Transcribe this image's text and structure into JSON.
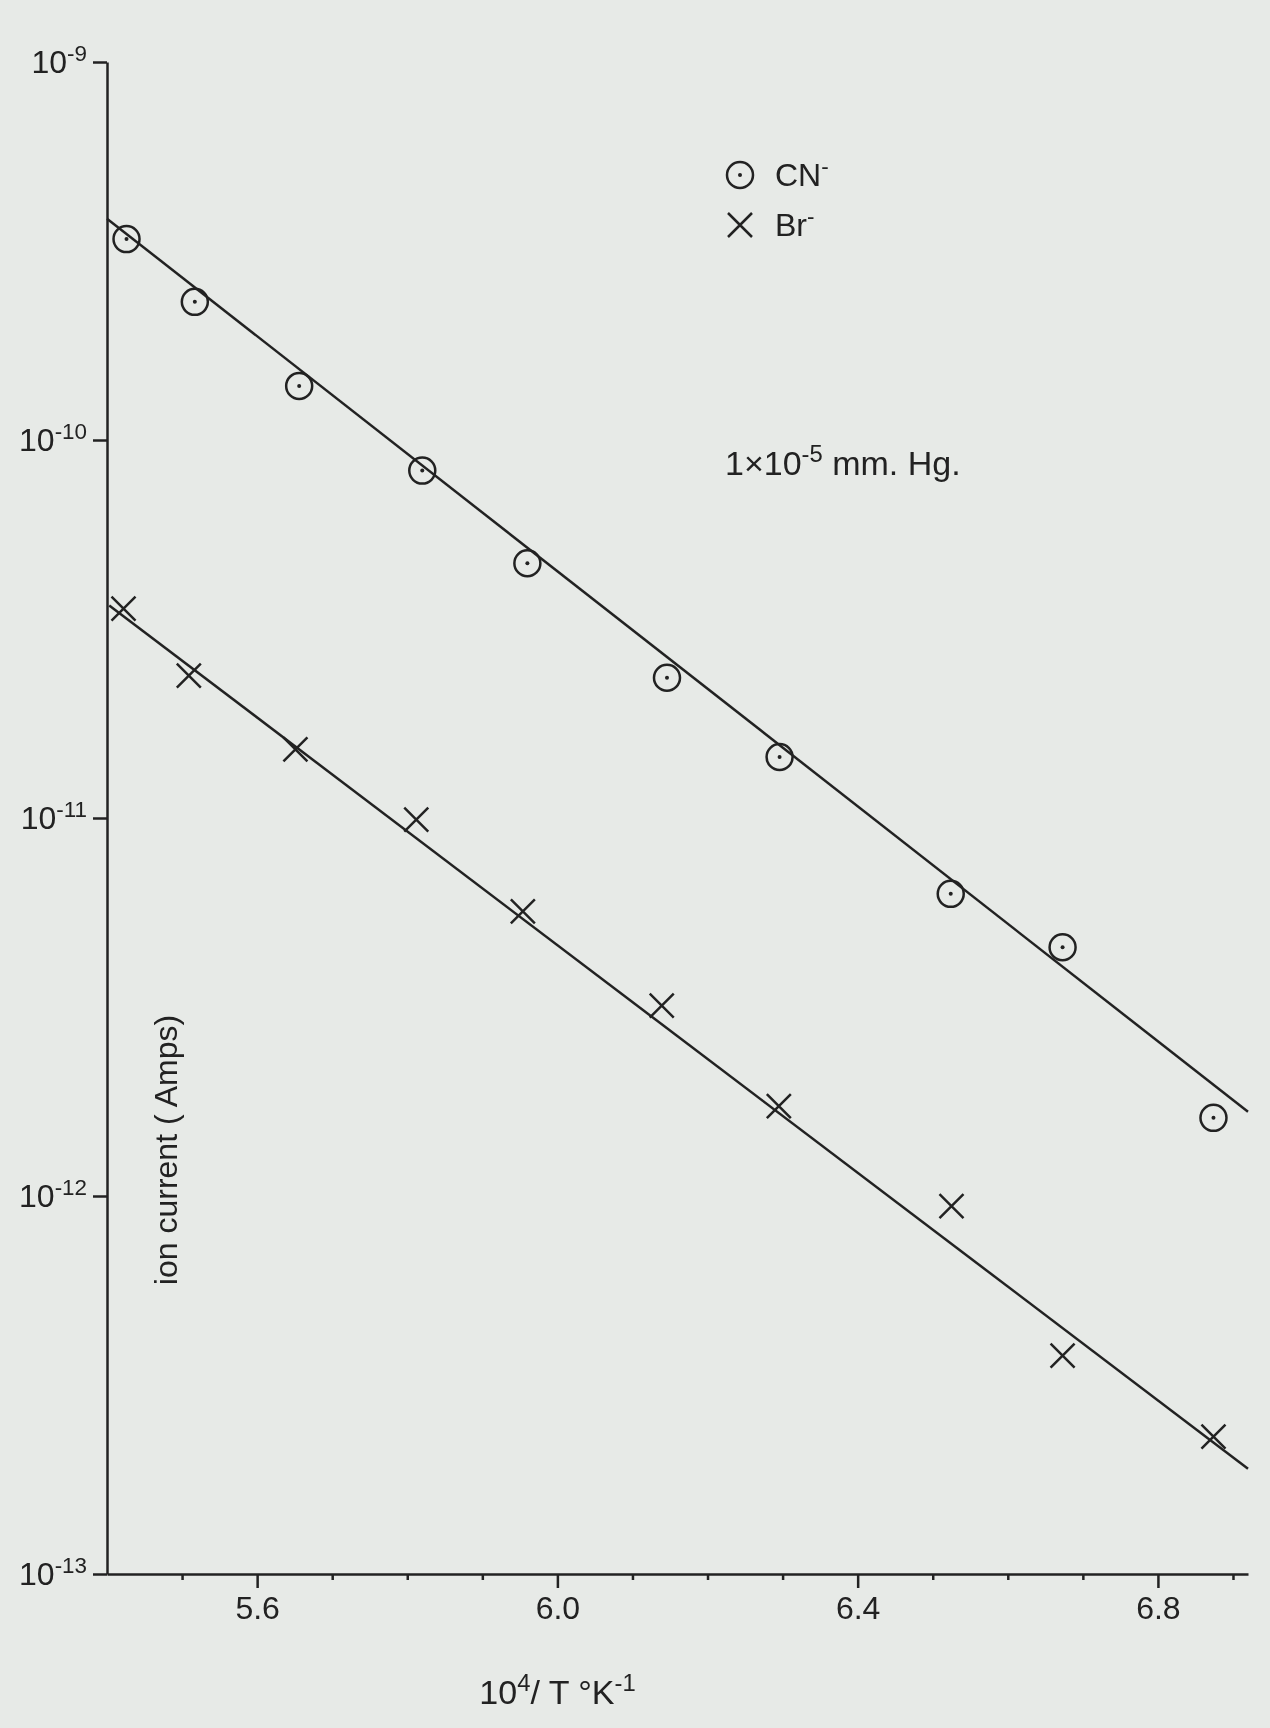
{
  "chart_data": {
    "type": "scatter",
    "xlabel": "10$^{4}$/ T   °K$^{-1}$",
    "ylabel": "ion current ( Amps)",
    "annotations": [
      "1×10$^{-5}$  mm. Hg."
    ],
    "xlim": [
      5.4,
      6.92
    ],
    "xticks": [
      {
        "value": 5.5,
        "label": null
      },
      5.6,
      {
        "value": 5.7,
        "label": null
      },
      {
        "value": 5.8,
        "label": null
      },
      {
        "value": 5.9,
        "label": null
      },
      {
        "value": 6.0,
        "label": "6.0"
      },
      {
        "value": 6.1,
        "label": null
      },
      {
        "value": 6.2,
        "label": null
      },
      {
        "value": 6.3,
        "label": null
      },
      6.4,
      {
        "value": 6.5,
        "label": null
      },
      {
        "value": 6.6,
        "label": null
      },
      {
        "value": 6.7,
        "label": null
      },
      6.8,
      {
        "value": 6.9,
        "label": null
      }
    ],
    "ylim": [
      1e-13,
      1e-09
    ],
    "log": true,
    "yticks": [
      {
        "value": 1e-13,
        "label": "10$^{-13}$"
      },
      {
        "value": 1e-12,
        "label": "10$^{-12}$"
      },
      {
        "value": 1e-11,
        "label": "10$^{-11}$"
      },
      {
        "value": 1e-10,
        "label": "10$^{-10}$"
      },
      {
        "value": 1e-09,
        "label": "10$^{-9}$"
      }
    ],
    "grid": false,
    "legend": "top right",
    "series": [
      {
        "name": "CN$^{-}$",
        "color": "#222222",
        "marker": "circle",
        "x": [
          5.426,
          5.517,
          5.656,
          5.82,
          5.96,
          6.146,
          6.296,
          6.524,
          6.673,
          6.874
        ],
        "values": [
          3.4e-10,
          2.32e-10,
          1.39e-10,
          8.3e-11,
          4.72e-11,
          2.35e-11,
          1.45e-11,
          6.3e-12,
          4.55e-12,
          1.61e-12
        ]
      },
      {
        "name": "Br$^{-}$",
        "color": "#222222",
        "marker": "cross",
        "x": [
          5.422,
          5.509,
          5.651,
          5.812,
          5.954,
          6.139,
          6.295,
          6.525,
          6.673,
          6.874
        ],
        "values": [
          3.58e-11,
          2.38e-11,
          1.52e-11,
          9.9e-12,
          5.66e-12,
          3.19e-12,
          1.73e-12,
          9.4e-13,
          3.78e-13,
          2.31e-13
        ]
      },
      {
        "type": "line",
        "color": "#222222",
        "marker": "none",
        "line_style": "solid",
        "x": [
          5.4,
          6.92
        ],
        "values": [
          3.85e-10,
          1.67e-12
        ]
      },
      {
        "type": "line",
        "color": "#222222",
        "marker": "none",
        "line_style": "solid",
        "x": [
          5.403,
          6.92
        ],
        "values": [
          3.65e-11,
          1.9e-13
        ]
      }
    ]
  }
}
